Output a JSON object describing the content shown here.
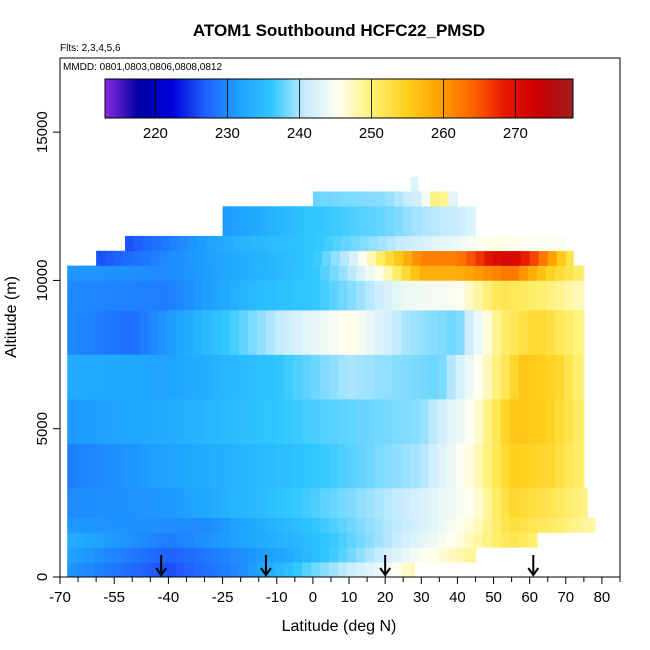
{
  "chart_data": {
    "type": "heatmap",
    "title": "ATOM1 Southbound HCFC22_PMSD",
    "annotations": [
      "Flts: 2,3,4,5,6",
      "MMDD: 0801,0803,0806,0808,0812"
    ],
    "xlabel": "Latitude (deg N)",
    "ylabel": "Altitude (m)",
    "xlim": [
      -70,
      85
    ],
    "ylim": [
      0,
      17500
    ],
    "x_ticks": [
      -70,
      -55,
      -40,
      -25,
      -10,
      0,
      10,
      20,
      30,
      40,
      50,
      60,
      70,
      80
    ],
    "x_tick_labels": [
      "-70",
      "-55",
      "-40",
      "-25",
      "-10",
      "0",
      "10",
      "20",
      "30",
      "40",
      "50",
      "60",
      "70",
      "80"
    ],
    "x_minor_step": 5,
    "y_ticks": [
      0,
      5000,
      10000,
      15000
    ],
    "y_tick_labels": [
      "0",
      "5000",
      "10000",
      "15000"
    ],
    "colorbar": {
      "range": [
        213,
        278
      ],
      "ticks": [
        220,
        230,
        240,
        250,
        260,
        270
      ],
      "tick_labels": [
        "220",
        "230",
        "240",
        "250",
        "260",
        "270"
      ],
      "colors": [
        "#8a2be2",
        "#0000a0",
        "#0000d8",
        "#2060ff",
        "#1ea0ff",
        "#30c8ff",
        "#c8ecff",
        "#fffff0",
        "#fff070",
        "#ffd21e",
        "#ffa000",
        "#ff6400",
        "#e61400",
        "#c80000",
        "#a01e1e"
      ],
      "location": "top-inset"
    },
    "layers": [
      {
        "alt_range": [
          0,
          500
        ],
        "lat_range": [
          -68,
          28
        ],
        "profile": [
          [
            -68,
            231
          ],
          [
            -40,
            226
          ],
          [
            -20,
            230
          ],
          [
            0,
            238
          ],
          [
            20,
            244
          ],
          [
            28,
            248
          ]
        ]
      },
      {
        "alt_range": [
          500,
          1000
        ],
        "lat_range": [
          -68,
          45
        ],
        "profile": [
          [
            -68,
            232
          ],
          [
            -40,
            227
          ],
          [
            -10,
            232
          ],
          [
            10,
            238
          ],
          [
            30,
            245
          ],
          [
            45,
            249
          ]
        ]
      },
      {
        "alt_range": [
          1000,
          1500
        ],
        "lat_range": [
          -68,
          62
        ],
        "profile": [
          [
            -68,
            233
          ],
          [
            -40,
            229
          ],
          [
            0,
            235
          ],
          [
            20,
            240
          ],
          [
            40,
            246
          ],
          [
            55,
            252
          ],
          [
            62,
            250
          ]
        ]
      },
      {
        "alt_range": [
          1500,
          2000
        ],
        "lat_range": [
          -68,
          78
        ],
        "profile": [
          [
            -68,
            231
          ],
          [
            -30,
            230
          ],
          [
            0,
            236
          ],
          [
            30,
            242
          ],
          [
            45,
            247
          ],
          [
            55,
            253
          ],
          [
            65,
            251
          ],
          [
            78,
            248
          ]
        ]
      },
      {
        "alt_range": [
          2000,
          3000
        ],
        "lat_range": [
          -68,
          76
        ],
        "profile": [
          [
            -68,
            230
          ],
          [
            -40,
            231
          ],
          [
            0,
            237
          ],
          [
            25,
            241
          ],
          [
            45,
            246
          ],
          [
            55,
            254
          ],
          [
            65,
            252
          ],
          [
            76,
            249
          ]
        ]
      },
      {
        "alt_range": [
          3000,
          4500
        ],
        "lat_range": [
          -68,
          75
        ],
        "profile": [
          [
            -68,
            229
          ],
          [
            -40,
            232
          ],
          [
            0,
            236
          ],
          [
            30,
            240
          ],
          [
            45,
            247
          ],
          [
            55,
            255
          ],
          [
            65,
            254
          ],
          [
            75,
            250
          ]
        ]
      },
      {
        "alt_range": [
          4500,
          6000
        ],
        "lat_range": [
          -68,
          75
        ],
        "profile": [
          [
            -68,
            231
          ],
          [
            -40,
            233
          ],
          [
            0,
            237
          ],
          [
            30,
            239
          ],
          [
            45,
            246
          ],
          [
            55,
            256
          ],
          [
            65,
            255
          ],
          [
            75,
            250
          ]
        ]
      },
      {
        "alt_range": [
          6000,
          7500
        ],
        "lat_range": [
          -68,
          75
        ],
        "profile": [
          [
            -68,
            233
          ],
          [
            -40,
            232
          ],
          [
            -10,
            236
          ],
          [
            10,
            240
          ],
          [
            35,
            238
          ],
          [
            48,
            247
          ],
          [
            58,
            256
          ],
          [
            68,
            254
          ],
          [
            75,
            249
          ]
        ]
      },
      {
        "alt_range": [
          7500,
          9000
        ],
        "lat_range": [
          -68,
          75
        ],
        "profile": [
          [
            -68,
            230
          ],
          [
            -50,
            228
          ],
          [
            -25,
            236
          ],
          [
            -5,
            242
          ],
          [
            10,
            246
          ],
          [
            25,
            240
          ],
          [
            40,
            238
          ],
          [
            52,
            250
          ],
          [
            62,
            254
          ],
          [
            75,
            249
          ]
        ]
      },
      {
        "alt_range": [
          9000,
          10000
        ],
        "lat_range": [
          -68,
          75
        ],
        "profile": [
          [
            -68,
            230
          ],
          [
            -40,
            229
          ],
          [
            -15,
            235
          ],
          [
            0,
            236
          ],
          [
            15,
            240
          ],
          [
            25,
            244
          ],
          [
            40,
            245
          ],
          [
            52,
            252
          ],
          [
            65,
            250
          ],
          [
            75,
            247
          ]
        ]
      },
      {
        "alt_range": [
          10000,
          10500
        ],
        "lat_range": [
          -68,
          75
        ],
        "profile": [
          [
            -68,
            231
          ],
          [
            -40,
            230
          ],
          [
            0,
            236
          ],
          [
            10,
            240
          ],
          [
            20,
            247
          ],
          [
            30,
            258
          ],
          [
            40,
            258
          ],
          [
            55,
            263
          ],
          [
            65,
            255
          ],
          [
            75,
            250
          ]
        ]
      },
      {
        "alt_range": [
          10500,
          11000
        ],
        "lat_range": [
          -60,
          72
        ],
        "profile": [
          [
            -60,
            226
          ],
          [
            -40,
            230
          ],
          [
            0,
            236
          ],
          [
            10,
            241
          ],
          [
            20,
            252
          ],
          [
            30,
            262
          ],
          [
            40,
            262
          ],
          [
            50,
            270
          ],
          [
            55,
            272
          ],
          [
            62,
            265
          ],
          [
            72,
            251
          ]
        ]
      },
      {
        "alt_range": [
          11000,
          11500
        ],
        "lat_range": [
          -52,
          70
        ],
        "profile": [
          [
            -52,
            226
          ],
          [
            -20,
            234
          ],
          [
            0,
            236
          ],
          [
            20,
            240
          ],
          [
            35,
            243
          ],
          [
            50,
            246
          ],
          [
            70,
            245
          ]
        ]
      },
      {
        "alt_range": [
          11500,
          12500
        ],
        "lat_range": [
          -25,
          45
        ],
        "profile": [
          [
            -25,
            231
          ],
          [
            0,
            236
          ],
          [
            20,
            238
          ],
          [
            30,
            240
          ],
          [
            40,
            241
          ],
          [
            45,
            243
          ]
        ]
      },
      {
        "alt_range": [
          12500,
          13000
        ],
        "lat_range": [
          0,
          40
        ],
        "profile": [
          [
            0,
            238
          ],
          [
            20,
            239
          ],
          [
            30,
            242
          ],
          [
            35,
            252
          ],
          [
            40,
            240
          ]
        ]
      },
      {
        "alt_range": [
          13000,
          13500
        ],
        "lat_range": [
          27,
          29
        ],
        "profile": [
          [
            27,
            240
          ],
          [
            29,
            245
          ]
        ]
      }
    ],
    "markers": {
      "symbol": "down-arrow",
      "latitudes": [
        -42,
        -13,
        20,
        61
      ]
    }
  }
}
